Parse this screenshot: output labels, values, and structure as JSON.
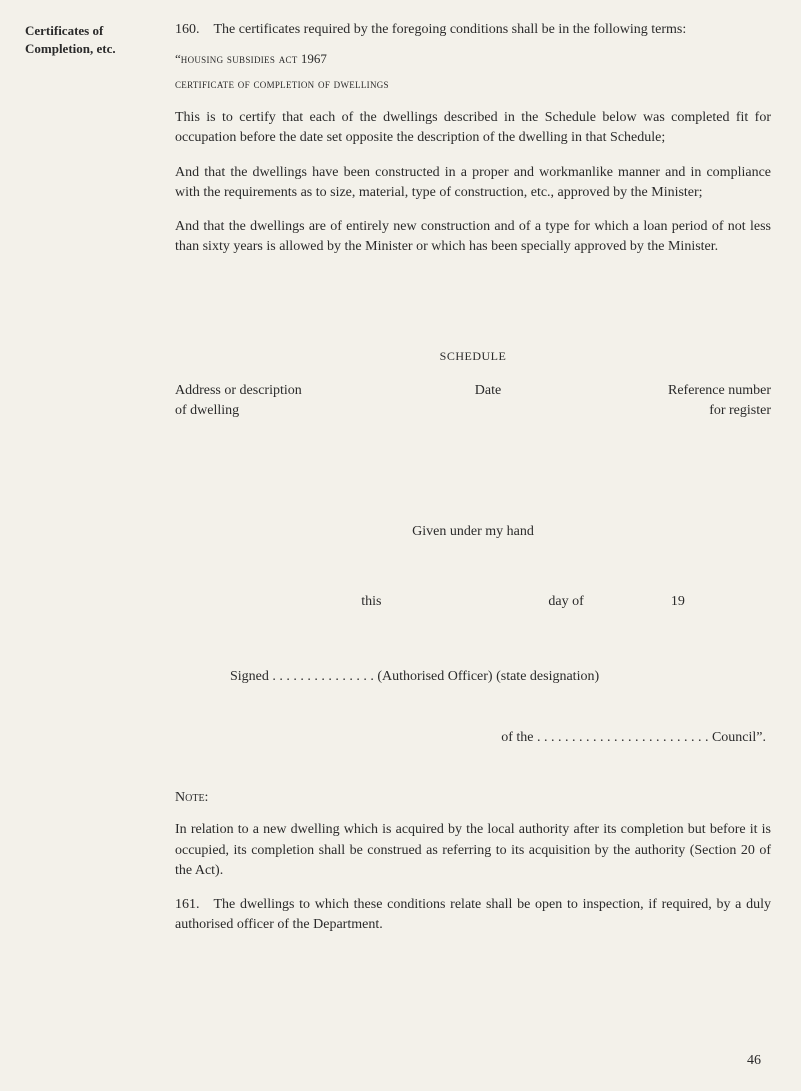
{
  "margin": {
    "heading_l1": "Certificates of",
    "heading_l2": "Completion, etc."
  },
  "main": {
    "p160": "160. The certificates required by the foregoing conditions shall be in the following terms:",
    "quote1_prefix": "“",
    "quote1_sc": "housing subsidies act",
    "quote1_year": " 1967",
    "quote2": "certificate of completion of dwellings",
    "p_this_certify": "This is to certify that each of the dwellings described in the Schedule below was completed fit for occupation before the date set opposite the description of the dwelling in that Schedule;",
    "p_and1": "And that the dwellings have been constructed in a proper and workmanlike manner and in compliance with the requirements as to size, material, type of construction, etc., approved by the Minister;",
    "p_and2": "And that the dwellings are of entirely new construction and of a type for which a loan period of not less than sixty years is allowed by the Minister or which has been specially approved by the Minister.",
    "schedule_title": "SCHEDULE",
    "sched_left_l1": "Address or description",
    "sched_left_l2": "of dwelling",
    "sched_mid": "Date",
    "sched_right_l1": "Reference number",
    "sched_right_l2": "for register",
    "given_hand": "Given under my hand",
    "this_label": "this",
    "dayof_label": "day of",
    "year_prefix": "19",
    "signed_label": "Signed",
    "signed_dots": " . . . . . . . . . . . . . . . ",
    "signed_tail": "(Authorised Officer) (state designation)",
    "ofthe_label": "of the",
    "ofthe_dots": " . . . . . . . . . . . . . . . . . . . . . . . . . ",
    "ofthe_tail": "Council”.",
    "note_heading": "Note:",
    "note_para": "In relation to a new dwelling which is acquired by the local authority after its completion but before it is occupied, its completion shall be construed as referring to its acquisition by the authority (Section 20 of the Act).",
    "p161": "161. The dwellings to which these conditions relate shall be open to inspection, if required, by a duly authorised officer of the Department."
  },
  "page_number": "46"
}
